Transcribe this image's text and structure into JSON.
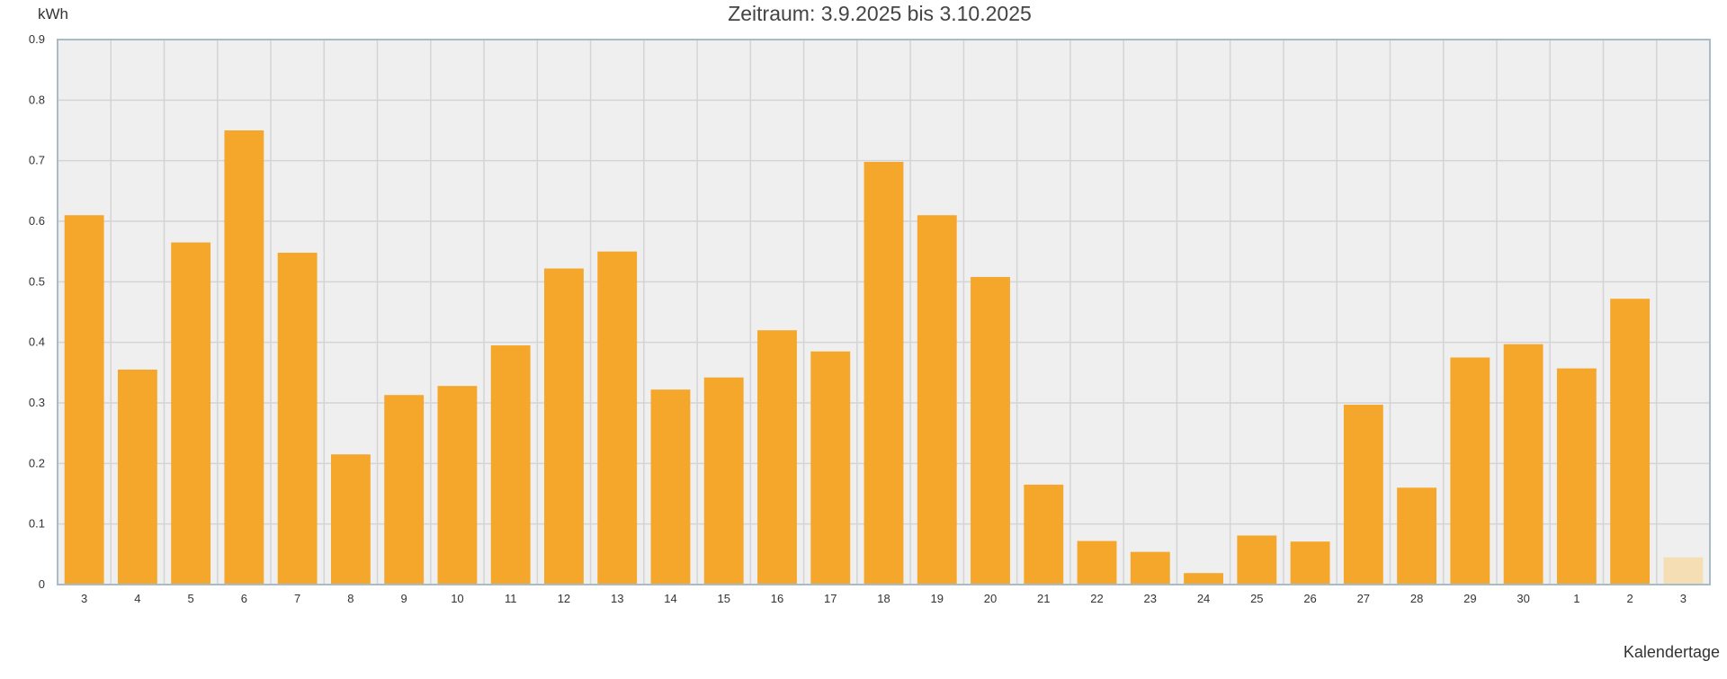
{
  "chart_data": {
    "type": "bar",
    "title": "Zeitraum: 3.9.2025 bis 3.10.2025",
    "ylabel": "kWh",
    "xlabel": "Kalendertage",
    "ylim": [
      0,
      0.9
    ],
    "yticks": [
      "0",
      "0.1",
      "0.2",
      "0.3",
      "0.4",
      "0.5",
      "0.6",
      "0.7",
      "0.8",
      "0.9"
    ],
    "categories": [
      "3",
      "4",
      "5",
      "6",
      "7",
      "8",
      "9",
      "10",
      "11",
      "12",
      "13",
      "14",
      "15",
      "16",
      "17",
      "18",
      "19",
      "20",
      "21",
      "22",
      "23",
      "24",
      "25",
      "26",
      "27",
      "28",
      "29",
      "30",
      "1",
      "2",
      "3"
    ],
    "values": [
      0.61,
      0.355,
      0.565,
      0.75,
      0.548,
      0.215,
      0.313,
      0.328,
      0.395,
      0.522,
      0.55,
      0.322,
      0.342,
      0.42,
      0.385,
      0.698,
      0.61,
      0.508,
      0.165,
      0.072,
      0.054,
      0.019,
      0.081,
      0.071,
      0.297,
      0.16,
      0.375,
      0.397,
      0.357,
      0.472,
      0.045
    ],
    "partial_last_bar": true,
    "grid": true,
    "colors": {
      "bar": "#f5a72b",
      "bar_partial": "#f5deb3",
      "plot_background": "#efefef",
      "grid": "#d4d4d4",
      "axis_border": "#a7bcc6"
    }
  }
}
